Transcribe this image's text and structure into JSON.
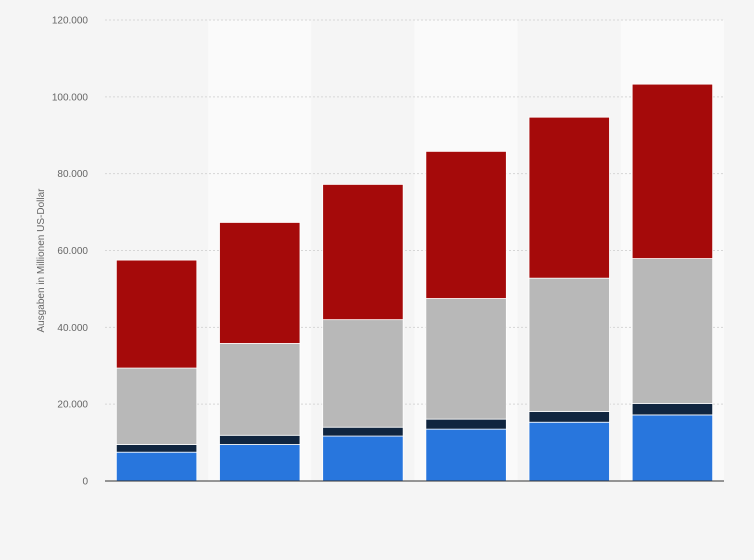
{
  "chart_data": {
    "type": "bar",
    "stacked": true,
    "title": "",
    "xlabel": "",
    "ylabel": "Ausgaben in Millionen US-Dollar",
    "ylim": [
      0,
      120000
    ],
    "yticks": [
      0,
      20000,
      40000,
      60000,
      80000,
      100000,
      120000
    ],
    "ytick_labels": [
      "0",
      "20.000",
      "40.000",
      "60.000",
      "80.000",
      "100.000",
      "120.000"
    ],
    "categories": [
      "",
      "",
      "",
      "",
      "",
      ""
    ],
    "grid": true,
    "series": [
      {
        "color": "#2876dd",
        "values": [
          7500,
          9500,
          11700,
          13500,
          15300,
          17200
        ]
      },
      {
        "color": "#10253f",
        "values": [
          2000,
          2400,
          2300,
          2600,
          2800,
          3000
        ]
      },
      {
        "color": "#b8b8b8",
        "values": [
          19900,
          23900,
          28000,
          31400,
          34700,
          37700
        ]
      },
      {
        "color": "#a50a0a",
        "values": [
          28100,
          31500,
          35200,
          38300,
          41900,
          45400
        ]
      }
    ]
  }
}
